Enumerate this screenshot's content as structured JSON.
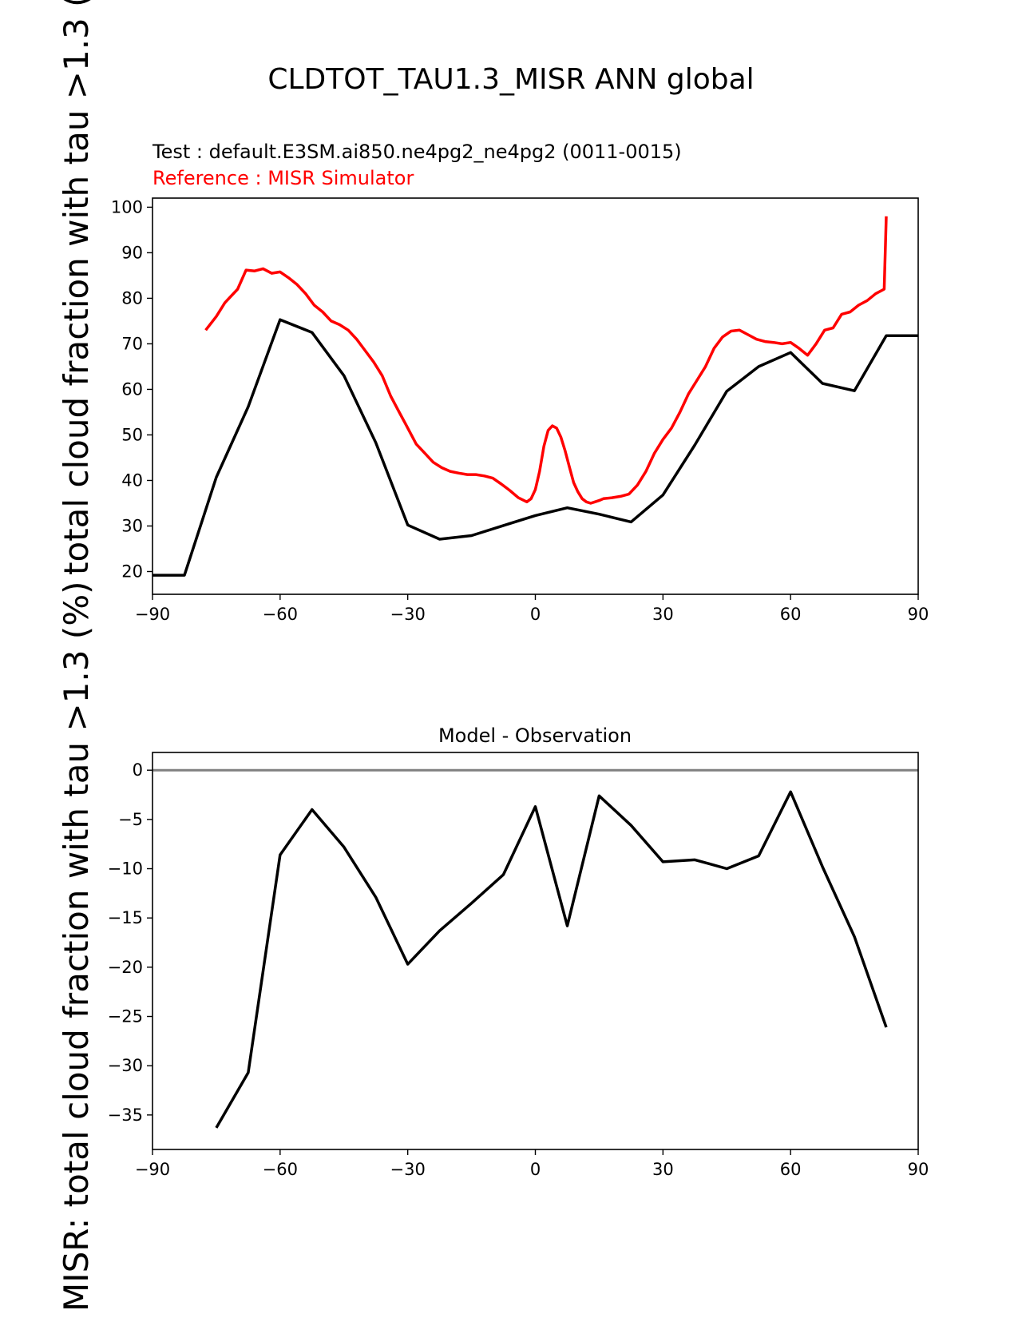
{
  "figure": {
    "title": "CLDTOT_TAU1.3_MISR ANN global",
    "ylabel_main": "total cloud fraction with tau >1.3 (%)",
    "ylabel_overlap": "MISR: total cloud fraction with tau >1.3 (%)"
  },
  "chart_data": [
    {
      "type": "line",
      "subtitle_test": "Test : default.E3SM.ai850.ne4pg2_ne4pg2 (0011-0015)",
      "subtitle_ref": "Reference : MISR Simulator",
      "xlim": [
        -90,
        90
      ],
      "ylim": [
        15,
        102
      ],
      "xticks": [
        -90,
        -60,
        -30,
        0,
        30,
        60,
        90
      ],
      "xtick_labels": [
        "−90",
        "−60",
        "−30",
        "0",
        "30",
        "60",
        "90"
      ],
      "yticks": [
        20,
        30,
        40,
        50,
        60,
        70,
        80,
        90,
        100
      ],
      "series": [
        {
          "role": "test",
          "color": "#000000",
          "x": [
            -90,
            -82.5,
            -75,
            -67.5,
            -60,
            -52.5,
            -45,
            -37.5,
            -30,
            -22.5,
            -15,
            -7.5,
            0,
            7.5,
            15,
            22.5,
            30,
            37.5,
            45,
            52.5,
            60,
            67.5,
            75,
            82.5,
            90
          ],
          "y": [
            19.2,
            19.2,
            40.7,
            56.2,
            75.3,
            72.5,
            63.0,
            48.3,
            30.2,
            27.1,
            27.9,
            30.1,
            32.3,
            34.0,
            32.6,
            30.9,
            36.8,
            47.8,
            59.6,
            65.0,
            68.1,
            61.3,
            59.7,
            71.8,
            71.8
          ]
        },
        {
          "role": "reference",
          "color": "#ff0000",
          "x": [
            -77.5,
            -75,
            -73,
            -70,
            -68,
            -66,
            -64,
            -62,
            -60,
            -58,
            -56,
            -54,
            -52,
            -50,
            -48,
            -46,
            -44,
            -42,
            -40,
            -38,
            -36,
            -34,
            -32,
            -30,
            -28,
            -26,
            -24,
            -22,
            -20,
            -18,
            -16,
            -14,
            -12,
            -10,
            -8,
            -6,
            -4,
            -2,
            -1,
            0,
            1,
            2,
            3,
            4,
            5,
            6,
            7,
            8,
            9,
            10,
            11,
            12,
            13,
            14,
            15,
            16,
            18,
            20,
            22,
            24,
            26,
            28,
            30,
            32,
            34,
            36,
            38,
            40,
            42,
            44,
            46,
            48,
            50,
            52,
            54,
            56,
            58,
            60,
            62,
            64,
            66,
            68,
            70,
            72,
            74,
            76,
            78,
            80,
            82,
            82.5
          ],
          "y": [
            73.0,
            76.0,
            79.0,
            82.0,
            86.2,
            86.0,
            86.5,
            85.5,
            85.8,
            84.5,
            83.0,
            81.0,
            78.5,
            77.0,
            75.0,
            74.2,
            73.0,
            71.0,
            68.5,
            66.0,
            63.0,
            58.5,
            55.0,
            51.5,
            48.0,
            46.0,
            44.0,
            42.8,
            42.0,
            41.6,
            41.3,
            41.3,
            41.0,
            40.5,
            39.2,
            37.8,
            36.2,
            35.3,
            36.0,
            38.0,
            42.0,
            47.5,
            51.0,
            52.0,
            51.5,
            49.5,
            46.5,
            43.0,
            39.5,
            37.5,
            36.0,
            35.3,
            35.0,
            35.3,
            35.6,
            36.0,
            36.2,
            36.5,
            37.0,
            39.0,
            42.0,
            46.0,
            49.0,
            51.5,
            55.0,
            59.0,
            62.0,
            65.0,
            69.0,
            71.5,
            72.8,
            73.0,
            72.0,
            71.0,
            70.5,
            70.3,
            70.0,
            70.3,
            69.0,
            67.5,
            70.0,
            73.0,
            73.5,
            76.5,
            77.0,
            78.5,
            79.5,
            81.0,
            82.0,
            98.0
          ]
        }
      ]
    },
    {
      "type": "line",
      "title": "Model - Observation",
      "xlim": [
        -90,
        90
      ],
      "ylim": [
        -38.5,
        1.8
      ],
      "xticks": [
        -90,
        -60,
        -30,
        0,
        30,
        60,
        90
      ],
      "xtick_labels": [
        "−90",
        "−60",
        "−30",
        "0",
        "30",
        "60",
        "90"
      ],
      "yticks": [
        0,
        -5,
        -10,
        -15,
        -20,
        -25,
        -30,
        -35
      ],
      "ytick_labels": [
        "0",
        "−5",
        "−10",
        "−15",
        "−20",
        "−25",
        "−30",
        "−35"
      ],
      "zero_line_color": "#808080",
      "series": [
        {
          "role": "difference",
          "color": "#000000",
          "x": [
            -75,
            -67.5,
            -60,
            -52.5,
            -45,
            -37.5,
            -30,
            -22.5,
            -15,
            -7.5,
            0,
            7.5,
            15,
            22.5,
            30,
            37.5,
            45,
            52.5,
            60,
            67.5,
            75,
            82.5
          ],
          "y": [
            -36.3,
            -30.7,
            -8.6,
            -4.0,
            -7.8,
            -12.9,
            -19.7,
            -16.3,
            -13.5,
            -10.6,
            -3.7,
            -15.8,
            -2.6,
            -5.6,
            -9.3,
            -9.1,
            -10.0,
            -8.7,
            -2.2,
            -9.8,
            -16.9,
            -26.1
          ]
        }
      ]
    }
  ]
}
